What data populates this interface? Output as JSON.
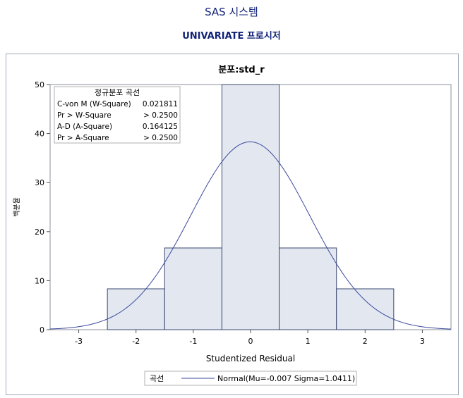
{
  "header": {
    "title": "SAS 시스템",
    "subtitle": "UNIVARIATE 프로시저"
  },
  "chart_data": {
    "type": "bar",
    "title": "분포:std_r",
    "xlabel": "Studentized Residual",
    "ylabel": "백분율",
    "xlim": [
      -3.5,
      3.5
    ],
    "ylim": [
      0,
      50
    ],
    "xticks": [
      -3,
      -2,
      -1,
      0,
      1,
      2,
      3
    ],
    "yticks": [
      0,
      10,
      20,
      30,
      40,
      50
    ],
    "bins": [
      {
        "left": -2.5,
        "right": -1.5,
        "value": 8.333
      },
      {
        "left": -1.5,
        "right": -0.5,
        "value": 16.667
      },
      {
        "left": -0.5,
        "right": 0.5,
        "value": 50.0
      },
      {
        "left": 0.5,
        "right": 1.5,
        "value": 16.667
      },
      {
        "left": 1.5,
        "right": 2.5,
        "value": 8.333
      }
    ],
    "normal_curve": {
      "mu": -0.007,
      "sigma": 1.0411
    },
    "stats_box": {
      "title": "정규분포 곡선",
      "rows": [
        {
          "label": "C-von M (W-Square)",
          "value": "0.021811"
        },
        {
          "label": "Pr > W-Square",
          "value": "> 0.2500"
        },
        {
          "label": "A-D (A-Square)",
          "value": "0.164125"
        },
        {
          "label": "Pr > A-Square",
          "value": "> 0.2500"
        }
      ]
    },
    "legend": {
      "title": "곡선",
      "entry": "Normal(Mu=-0.007 Sigma=1.0411)"
    },
    "colors": {
      "bar_fill": "#e3e8f0",
      "bar_stroke": "#3b4870",
      "curve": "#3b4a9c",
      "title": "#112277"
    }
  }
}
